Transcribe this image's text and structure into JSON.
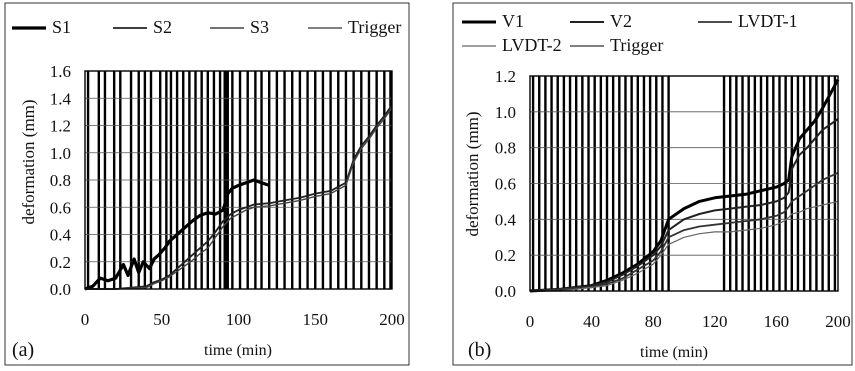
{
  "chart_data": [
    {
      "id": "a",
      "type": "line",
      "panel_label": "(a)",
      "xlabel": "time (min)",
      "ylabel": "deformation (mm)",
      "xlim": [
        0,
        200
      ],
      "ylim": [
        0,
        1.6
      ],
      "xticks": [
        0,
        50,
        100,
        150,
        200
      ],
      "xtick_labels": [
        "0",
        "50",
        "100",
        "150",
        "200"
      ],
      "yticks": [
        0,
        0.2,
        0.4,
        0.6,
        0.8,
        1.0,
        1.2,
        1.4,
        1.6
      ],
      "ytick_labels": [
        "0.0",
        "0.2",
        "0.4",
        "0.6",
        "0.8",
        "1.0",
        "1.2",
        "1.4",
        "1.6"
      ],
      "grid": "horizontal",
      "legend": {
        "placement": "top"
      },
      "trigger_lines": [
        2,
        9,
        13,
        19,
        23,
        30,
        35,
        39,
        43,
        49,
        53,
        56,
        60,
        64,
        68,
        72,
        76,
        80,
        84,
        88,
        91,
        92,
        93,
        96,
        101,
        106,
        111,
        115,
        120,
        125,
        130,
        135,
        140,
        145,
        150,
        155,
        160,
        165,
        170,
        175,
        180,
        185,
        190,
        195,
        199
      ],
      "series": [
        {
          "name": "S1",
          "color": "#000000",
          "width": 3.2,
          "x": [
            0,
            5,
            10,
            15,
            20,
            25,
            28,
            32,
            35,
            38,
            42,
            45,
            48,
            52,
            55,
            60,
            65,
            70,
            75,
            80,
            85,
            90,
            93,
            96,
            100,
            105,
            110,
            115,
            120
          ],
          "y": [
            0.0,
            0.02,
            0.08,
            0.06,
            0.08,
            0.18,
            0.1,
            0.22,
            0.12,
            0.2,
            0.15,
            0.22,
            0.25,
            0.3,
            0.35,
            0.4,
            0.45,
            0.5,
            0.54,
            0.56,
            0.55,
            0.58,
            0.7,
            0.74,
            0.76,
            0.78,
            0.8,
            0.78,
            0.76
          ]
        },
        {
          "name": "S2",
          "color": "#222222",
          "width": 1.8,
          "x": [
            0,
            20,
            40,
            45,
            50,
            55,
            60,
            65,
            70,
            75,
            80,
            85,
            90,
            95,
            100,
            105,
            110,
            120,
            130,
            140,
            150,
            160,
            170,
            175,
            180,
            185,
            190,
            195,
            200
          ],
          "y": [
            0.0,
            0.0,
            0.02,
            0.05,
            0.07,
            0.1,
            0.15,
            0.2,
            0.25,
            0.3,
            0.35,
            0.42,
            0.5,
            0.55,
            0.58,
            0.6,
            0.62,
            0.63,
            0.65,
            0.67,
            0.7,
            0.72,
            0.78,
            0.95,
            1.05,
            1.12,
            1.2,
            1.27,
            1.35
          ]
        },
        {
          "name": "S3",
          "color": "#444444",
          "width": 1.4,
          "x": [
            0,
            20,
            40,
            45,
            50,
            55,
            60,
            65,
            70,
            75,
            80,
            85,
            90,
            95,
            100,
            105,
            110,
            120,
            130,
            140,
            150,
            160,
            170,
            175,
            180,
            185,
            190,
            195,
            200
          ],
          "y": [
            0.0,
            0.0,
            0.01,
            0.04,
            0.06,
            0.09,
            0.13,
            0.17,
            0.21,
            0.26,
            0.3,
            0.38,
            0.46,
            0.52,
            0.55,
            0.58,
            0.6,
            0.61,
            0.63,
            0.65,
            0.68,
            0.7,
            0.76,
            0.93,
            1.03,
            1.1,
            1.18,
            1.25,
            1.33
          ]
        },
        {
          "name": "Trigger",
          "color": "#000000",
          "width": 1.0,
          "legend_only": true,
          "x": [],
          "y": []
        }
      ]
    },
    {
      "id": "b",
      "type": "line",
      "panel_label": "(b)",
      "xlabel": "time (min)",
      "ylabel": "deformation (mm)",
      "xlim": [
        0,
        200
      ],
      "ylim": [
        0,
        1.2
      ],
      "xticks": [
        0,
        40,
        80,
        120,
        160,
        200
      ],
      "xtick_labels": [
        "0",
        "40",
        "80",
        "120",
        "160",
        "200"
      ],
      "yticks": [
        0,
        0.2,
        0.4,
        0.6,
        0.8,
        1.0,
        1.2
      ],
      "ytick_labels": [
        "0.0",
        "0.2",
        "0.4",
        "0.6",
        "0.8",
        "1.0",
        "1.2"
      ],
      "grid": "horizontal",
      "legend": {
        "placement": "top"
      },
      "trigger_lines": [
        2,
        6,
        10,
        14,
        18,
        22,
        26,
        30,
        34,
        38,
        42,
        46,
        50,
        54,
        58,
        62,
        66,
        70,
        74,
        78,
        82,
        86,
        90,
        126,
        130,
        134,
        138,
        142,
        146,
        150,
        154,
        158,
        162,
        166,
        170,
        174,
        178,
        182,
        186,
        190,
        194,
        198
      ],
      "series": [
        {
          "name": "V1",
          "color": "#000000",
          "width": 3.0,
          "x": [
            0,
            20,
            40,
            50,
            60,
            70,
            80,
            85,
            90,
            100,
            110,
            120,
            130,
            140,
            150,
            160,
            165,
            168,
            170,
            175,
            180,
            185,
            190,
            195,
            200
          ],
          "y": [
            0.0,
            0.01,
            0.03,
            0.06,
            0.1,
            0.15,
            0.22,
            0.28,
            0.4,
            0.46,
            0.5,
            0.52,
            0.53,
            0.54,
            0.56,
            0.58,
            0.6,
            0.62,
            0.75,
            0.85,
            0.9,
            0.95,
            1.02,
            1.1,
            1.18
          ]
        },
        {
          "name": "V2",
          "color": "#222222",
          "width": 2.0,
          "x": [
            0,
            20,
            40,
            50,
            60,
            70,
            80,
            85,
            90,
            100,
            110,
            120,
            130,
            140,
            150,
            160,
            165,
            168,
            170,
            175,
            180,
            185,
            190,
            195,
            200
          ],
          "y": [
            0.0,
            0.01,
            0.03,
            0.05,
            0.09,
            0.14,
            0.2,
            0.25,
            0.34,
            0.4,
            0.43,
            0.45,
            0.46,
            0.47,
            0.48,
            0.5,
            0.52,
            0.55,
            0.68,
            0.76,
            0.8,
            0.85,
            0.9,
            0.93,
            0.96
          ]
        },
        {
          "name": "LVDT-1",
          "color": "#333333",
          "width": 1.8,
          "x": [
            0,
            20,
            40,
            50,
            60,
            70,
            80,
            85,
            90,
            100,
            110,
            120,
            130,
            140,
            150,
            160,
            165,
            168,
            170,
            175,
            180,
            185,
            190,
            195,
            200
          ],
          "y": [
            0.0,
            0.01,
            0.02,
            0.04,
            0.07,
            0.12,
            0.17,
            0.22,
            0.3,
            0.34,
            0.36,
            0.37,
            0.38,
            0.39,
            0.4,
            0.42,
            0.44,
            0.47,
            0.5,
            0.53,
            0.56,
            0.59,
            0.62,
            0.64,
            0.66
          ]
        },
        {
          "name": "LVDT-2",
          "color": "#666666",
          "width": 1.2,
          "x": [
            0,
            20,
            40,
            50,
            60,
            70,
            80,
            85,
            90,
            100,
            110,
            120,
            130,
            140,
            150,
            160,
            165,
            168,
            170,
            175,
            180,
            185,
            190,
            195,
            200
          ],
          "y": [
            0.0,
            0.0,
            0.02,
            0.03,
            0.06,
            0.1,
            0.15,
            0.2,
            0.26,
            0.3,
            0.32,
            0.33,
            0.33,
            0.34,
            0.35,
            0.37,
            0.39,
            0.41,
            0.43,
            0.44,
            0.46,
            0.47,
            0.48,
            0.49,
            0.5
          ]
        },
        {
          "name": "Trigger",
          "color": "#000000",
          "width": 1.0,
          "legend_only": true,
          "x": [],
          "y": []
        }
      ]
    }
  ]
}
